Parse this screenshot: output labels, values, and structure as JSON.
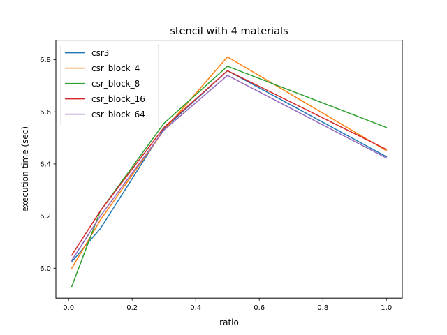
{
  "chart_data": {
    "type": "line",
    "title": "stencil with 4 materials",
    "xlabel": "ratio",
    "ylabel": "execution time (sec)",
    "xlim": [
      -0.04,
      1.05
    ],
    "ylim": [
      5.885,
      6.875
    ],
    "x_ticks": [
      0.0,
      0.2,
      0.4,
      0.6,
      0.8,
      1.0
    ],
    "x_tick_labels": [
      "0.0",
      "0.2",
      "0.4",
      "0.6",
      "0.8",
      "1.0"
    ],
    "y_ticks": [
      6.0,
      6.2,
      6.4,
      6.6,
      6.8
    ],
    "y_tick_labels": [
      "6.0",
      "6.2",
      "6.4",
      "6.6",
      "6.8"
    ],
    "grid": false,
    "legend_position": "top-left",
    "x": [
      0.01,
      0.1,
      0.3,
      0.5,
      1.0
    ],
    "series": [
      {
        "name": "csr3",
        "color": "#1f77b4",
        "values": [
          6.025,
          6.152,
          6.535,
          6.758,
          6.428
        ]
      },
      {
        "name": "csr_block_4",
        "color": "#ff7f0e",
        "values": [
          6.0,
          6.185,
          6.53,
          6.811,
          6.451
        ]
      },
      {
        "name": "csr_block_8",
        "color": "#2ca02c",
        "values": [
          5.93,
          6.22,
          6.556,
          6.775,
          6.54
        ]
      },
      {
        "name": "csr_block_16",
        "color": "#d62728",
        "values": [
          6.05,
          6.22,
          6.54,
          6.758,
          6.456
        ]
      },
      {
        "name": "csr_block_64",
        "color": "#9467bd",
        "values": [
          6.03,
          6.2,
          6.53,
          6.74,
          6.423
        ]
      }
    ]
  }
}
